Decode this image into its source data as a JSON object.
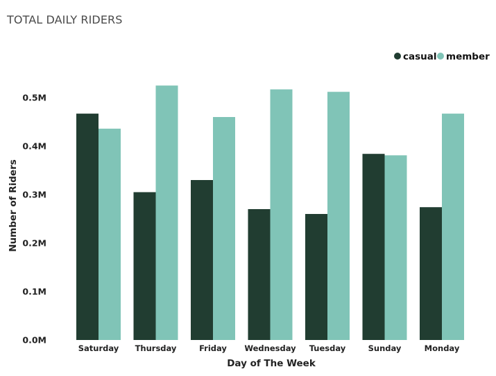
{
  "title": "TOTAL DAILY RIDERS",
  "colors": {
    "casual": "#213d31",
    "member": "#80c4b7"
  },
  "chart_data": {
    "type": "bar",
    "title": "TOTAL DAILY RIDERS",
    "xlabel": "Day of The Week",
    "ylabel": "Number of Riders",
    "categories": [
      "Saturday",
      "Thursday",
      "Friday",
      "Wednesday",
      "Tuesday",
      "Sunday",
      "Monday"
    ],
    "series": [
      {
        "name": "casual",
        "values": [
          467000,
          305000,
          330000,
          270000,
          260000,
          384000,
          274000
        ]
      },
      {
        "name": "member",
        "values": [
          436000,
          525000,
          460000,
          517000,
          512000,
          381000,
          467000
        ]
      }
    ],
    "ylim": [
      0,
      500000
    ],
    "yticks": [
      {
        "value": 0,
        "label": "0.0M"
      },
      {
        "value": 100000,
        "label": "0.1M"
      },
      {
        "value": 200000,
        "label": "0.2M"
      },
      {
        "value": 300000,
        "label": "0.3M"
      },
      {
        "value": 400000,
        "label": "0.4M"
      },
      {
        "value": 500000,
        "label": "0.5M"
      }
    ],
    "grid": false,
    "legend_position": "top-right"
  }
}
